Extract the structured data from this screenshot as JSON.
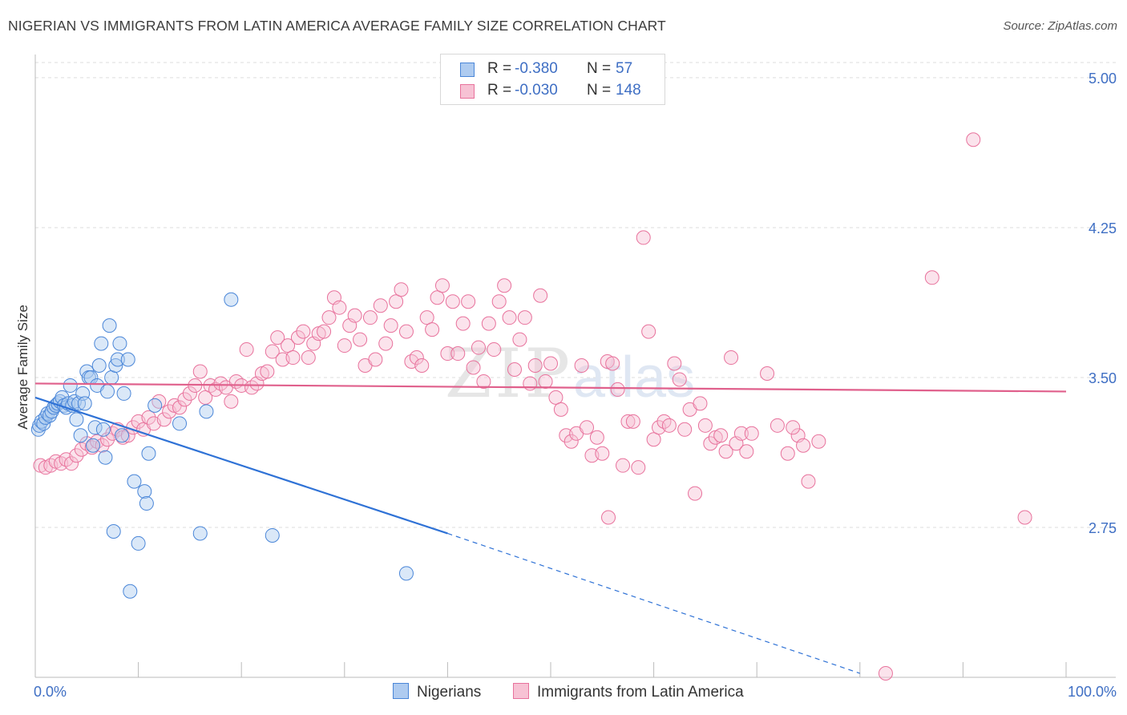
{
  "header": {
    "title": "NIGERIAN VS IMMIGRANTS FROM LATIN AMERICA AVERAGE FAMILY SIZE CORRELATION CHART",
    "source": "Source: ZipAtlas.com"
  },
  "legend": {
    "rows": [
      {
        "r_label": "R =",
        "r_value": "-0.380",
        "n_label": "N =",
        "n_value": "57"
      },
      {
        "r_label": "R =",
        "r_value": "-0.030",
        "n_label": "N =",
        "n_value": "148"
      }
    ]
  },
  "bottom_legend": [
    "Nigerians",
    "Immigrants from Latin America"
  ],
  "colors": {
    "blue": "#4a86d8",
    "blue_fill": "#aecbf0",
    "pink": "#e8729c",
    "pink_fill": "#f7c2d4",
    "axis_label": "#3f6fc4",
    "grid": "#dddddd"
  },
  "chart_data": {
    "type": "scatter",
    "title": "NIGERIAN VS IMMIGRANTS FROM LATIN AMERICA AVERAGE FAMILY SIZE CORRELATION CHART",
    "xlabel": "",
    "ylabel": "Average Family Size",
    "xlim": [
      0,
      100
    ],
    "ylim": [
      2.0,
      5.1
    ],
    "x_tick_labels": [
      "0.0%",
      "100.0%"
    ],
    "y_ticks": [
      2.75,
      3.5,
      4.25,
      5.0
    ],
    "y_tick_labels": [
      "2.75",
      "3.50",
      "4.25",
      "5.00"
    ],
    "grid": "horizontal dashed",
    "legend_position": "top-center",
    "series": [
      {
        "name": "Nigerians",
        "color": "#4a86d8",
        "trend": {
          "x": [
            0,
            40
          ],
          "y": [
            3.4,
            2.72
          ],
          "extended_dashed_to": [
            80,
            2.02
          ]
        },
        "points": [
          [
            0.3,
            3.24
          ],
          [
            0.4,
            3.26
          ],
          [
            0.6,
            3.28
          ],
          [
            0.8,
            3.27
          ],
          [
            1.0,
            3.3
          ],
          [
            1.2,
            3.32
          ],
          [
            1.4,
            3.31
          ],
          [
            1.6,
            3.33
          ],
          [
            1.8,
            3.35
          ],
          [
            2.0,
            3.36
          ],
          [
            2.2,
            3.37
          ],
          [
            2.4,
            3.38
          ],
          [
            2.6,
            3.4
          ],
          [
            2.8,
            3.36
          ],
          [
            3.0,
            3.35
          ],
          [
            3.2,
            3.37
          ],
          [
            3.4,
            3.46
          ],
          [
            3.6,
            3.36
          ],
          [
            3.8,
            3.38
          ],
          [
            4.0,
            3.29
          ],
          [
            4.2,
            3.37
          ],
          [
            4.4,
            3.21
          ],
          [
            4.6,
            3.42
          ],
          [
            4.8,
            3.37
          ],
          [
            5.0,
            3.53
          ],
          [
            5.2,
            3.5
          ],
          [
            5.4,
            3.5
          ],
          [
            5.6,
            3.16
          ],
          [
            5.8,
            3.25
          ],
          [
            6.0,
            3.46
          ],
          [
            6.2,
            3.56
          ],
          [
            6.4,
            3.67
          ],
          [
            6.6,
            3.24
          ],
          [
            6.8,
            3.1
          ],
          [
            7.0,
            3.43
          ],
          [
            7.2,
            3.76
          ],
          [
            7.4,
            3.5
          ],
          [
            7.6,
            2.73
          ],
          [
            7.8,
            3.56
          ],
          [
            8.0,
            3.59
          ],
          [
            8.2,
            3.67
          ],
          [
            8.4,
            3.21
          ],
          [
            8.6,
            3.42
          ],
          [
            9.0,
            3.59
          ],
          [
            9.2,
            2.43
          ],
          [
            9.6,
            2.98
          ],
          [
            10.0,
            2.67
          ],
          [
            10.6,
            2.93
          ],
          [
            10.8,
            2.87
          ],
          [
            11.0,
            3.12
          ],
          [
            11.6,
            3.36
          ],
          [
            14.0,
            3.27
          ],
          [
            16.0,
            2.72
          ],
          [
            16.6,
            3.33
          ],
          [
            19.0,
            3.89
          ],
          [
            23.0,
            2.71
          ],
          [
            36.0,
            2.52
          ]
        ]
      },
      {
        "name": "Immigrants from Latin America",
        "color": "#e8729c",
        "trend": {
          "x": [
            0,
            100
          ],
          "y": [
            3.47,
            3.43
          ]
        },
        "points": [
          [
            0.5,
            3.06
          ],
          [
            1.0,
            3.05
          ],
          [
            1.5,
            3.06
          ],
          [
            2.0,
            3.08
          ],
          [
            2.5,
            3.07
          ],
          [
            3.0,
            3.09
          ],
          [
            3.5,
            3.07
          ],
          [
            4.0,
            3.11
          ],
          [
            4.5,
            3.14
          ],
          [
            5.0,
            3.17
          ],
          [
            5.5,
            3.15
          ],
          [
            6.0,
            3.18
          ],
          [
            6.5,
            3.16
          ],
          [
            7.0,
            3.19
          ],
          [
            7.5,
            3.22
          ],
          [
            8.0,
            3.24
          ],
          [
            8.5,
            3.2
          ],
          [
            9.0,
            3.21
          ],
          [
            9.5,
            3.25
          ],
          [
            10.0,
            3.28
          ],
          [
            10.5,
            3.24
          ],
          [
            11.0,
            3.3
          ],
          [
            11.5,
            3.27
          ],
          [
            12.0,
            3.38
          ],
          [
            12.5,
            3.29
          ],
          [
            13.0,
            3.33
          ],
          [
            13.5,
            3.36
          ],
          [
            14.0,
            3.35
          ],
          [
            14.5,
            3.39
          ],
          [
            15.0,
            3.42
          ],
          [
            15.5,
            3.46
          ],
          [
            16.0,
            3.53
          ],
          [
            16.5,
            3.4
          ],
          [
            17.0,
            3.46
          ],
          [
            17.5,
            3.44
          ],
          [
            18.0,
            3.47
          ],
          [
            18.5,
            3.45
          ],
          [
            19.0,
            3.38
          ],
          [
            19.5,
            3.48
          ],
          [
            20.0,
            3.46
          ],
          [
            20.5,
            3.64
          ],
          [
            21.0,
            3.45
          ],
          [
            21.5,
            3.47
          ],
          [
            22.0,
            3.52
          ],
          [
            22.5,
            3.53
          ],
          [
            23.0,
            3.63
          ],
          [
            23.5,
            3.7
          ],
          [
            24.0,
            3.59
          ],
          [
            24.5,
            3.66
          ],
          [
            25.0,
            3.6
          ],
          [
            25.5,
            3.7
          ],
          [
            26.0,
            3.73
          ],
          [
            26.5,
            3.6
          ],
          [
            27.0,
            3.67
          ],
          [
            27.5,
            3.72
          ],
          [
            28.0,
            3.73
          ],
          [
            28.5,
            3.8
          ],
          [
            29.0,
            3.9
          ],
          [
            29.5,
            3.85
          ],
          [
            30.0,
            3.66
          ],
          [
            30.5,
            3.76
          ],
          [
            31.0,
            3.81
          ],
          [
            31.5,
            3.69
          ],
          [
            32.0,
            3.56
          ],
          [
            32.5,
            3.8
          ],
          [
            33.0,
            3.59
          ],
          [
            33.5,
            3.86
          ],
          [
            34.0,
            3.67
          ],
          [
            34.5,
            3.76
          ],
          [
            35.0,
            3.88
          ],
          [
            35.5,
            3.94
          ],
          [
            36.0,
            3.73
          ],
          [
            36.5,
            3.58
          ],
          [
            37.0,
            3.6
          ],
          [
            37.5,
            3.56
          ],
          [
            38.0,
            3.8
          ],
          [
            38.5,
            3.74
          ],
          [
            39.0,
            3.9
          ],
          [
            39.5,
            3.96
          ],
          [
            40.0,
            3.62
          ],
          [
            40.5,
            3.88
          ],
          [
            41.0,
            3.62
          ],
          [
            41.5,
            3.77
          ],
          [
            42.0,
            3.88
          ],
          [
            42.5,
            3.55
          ],
          [
            43.0,
            3.65
          ],
          [
            43.5,
            3.48
          ],
          [
            44.0,
            3.77
          ],
          [
            44.5,
            3.64
          ],
          [
            45.0,
            3.88
          ],
          [
            45.5,
            3.96
          ],
          [
            46.0,
            3.8
          ],
          [
            46.5,
            3.54
          ],
          [
            47.0,
            3.69
          ],
          [
            47.5,
            3.8
          ],
          [
            48.0,
            3.47
          ],
          [
            48.5,
            3.56
          ],
          [
            49.0,
            3.91
          ],
          [
            49.5,
            3.48
          ],
          [
            50.0,
            3.57
          ],
          [
            50.5,
            3.4
          ],
          [
            51.0,
            3.34
          ],
          [
            51.5,
            3.21
          ],
          [
            52.0,
            3.18
          ],
          [
            52.5,
            3.22
          ],
          [
            53.0,
            3.56
          ],
          [
            53.5,
            3.25
          ],
          [
            54.0,
            3.11
          ],
          [
            54.5,
            3.2
          ],
          [
            55.0,
            3.12
          ],
          [
            55.5,
            3.58
          ],
          [
            56.0,
            3.57
          ],
          [
            56.5,
            3.44
          ],
          [
            57.0,
            3.06
          ],
          [
            57.5,
            3.28
          ],
          [
            58.0,
            3.28
          ],
          [
            58.5,
            3.05
          ],
          [
            59.0,
            4.2
          ],
          [
            59.5,
            3.73
          ],
          [
            60.0,
            3.19
          ],
          [
            60.5,
            3.25
          ],
          [
            61.0,
            3.28
          ],
          [
            61.5,
            3.26
          ],
          [
            62.0,
            3.57
          ],
          [
            62.5,
            3.49
          ],
          [
            63.0,
            3.24
          ],
          [
            63.5,
            3.34
          ],
          [
            64.0,
            2.92
          ],
          [
            64.5,
            3.37
          ],
          [
            65.0,
            3.26
          ],
          [
            65.5,
            3.17
          ],
          [
            66.0,
            3.2
          ],
          [
            66.5,
            3.21
          ],
          [
            67.0,
            3.13
          ],
          [
            67.5,
            3.6
          ],
          [
            68.0,
            3.17
          ],
          [
            68.5,
            3.22
          ],
          [
            69.0,
            3.13
          ],
          [
            69.5,
            3.22
          ],
          [
            71.0,
            3.52
          ],
          [
            72.0,
            3.26
          ],
          [
            73.0,
            3.12
          ],
          [
            74.0,
            3.21
          ],
          [
            75.0,
            2.98
          ],
          [
            76.0,
            3.18
          ],
          [
            82.5,
            2.02
          ],
          [
            87.0,
            4.0
          ],
          [
            91.0,
            4.69
          ],
          [
            96.0,
            2.8
          ],
          [
            55.6,
            2.8
          ],
          [
            73.5,
            3.25
          ],
          [
            74.5,
            3.16
          ]
        ]
      }
    ]
  }
}
